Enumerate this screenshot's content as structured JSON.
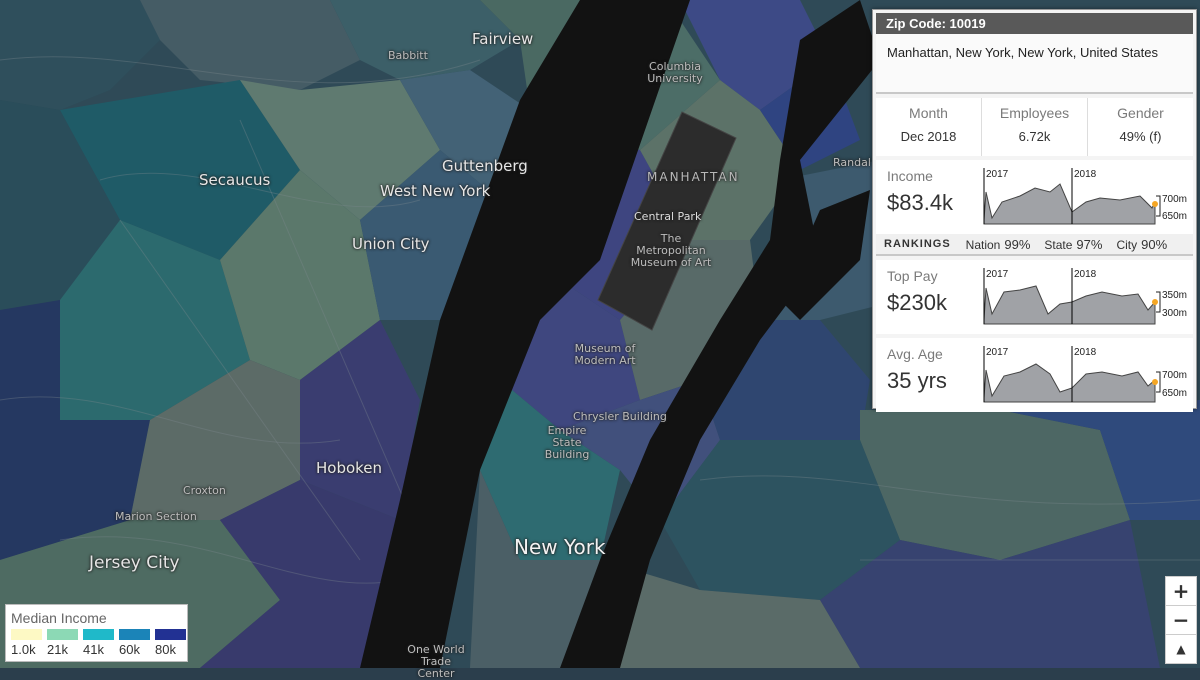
{
  "map": {
    "place_labels": [
      {
        "text": "Fairview"
      },
      {
        "text": "Secaucus"
      },
      {
        "text": "Guttenberg"
      },
      {
        "text": "West New York"
      },
      {
        "text": "Union City"
      },
      {
        "text": "Hoboken"
      },
      {
        "text": "Jersey City"
      },
      {
        "text": "New York"
      },
      {
        "text": "MANHATTAN"
      },
      {
        "text": "Randal Wards I"
      },
      {
        "text": "Babbitt"
      },
      {
        "text": "Columbia University"
      },
      {
        "text": "Central Park"
      },
      {
        "text": "The Metropolitan Museum of Art"
      },
      {
        "text": "Museum of Modern Art"
      },
      {
        "text": "Chrysler Building"
      },
      {
        "text": "Empire State Building"
      },
      {
        "text": "Croxton"
      },
      {
        "text": "Marion Section"
      },
      {
        "text": "One World Trade Center"
      }
    ]
  },
  "panel": {
    "zip_label": "Zip Code: 10019",
    "location": "Manhattan, New York, New York, United States",
    "stats": [
      {
        "label": "Month",
        "value": "Dec 2018"
      },
      {
        "label": "Employees",
        "value": "6.72k"
      },
      {
        "label": "Gender",
        "value": "49% (f)"
      }
    ],
    "income": {
      "label": "Income",
      "value": "$83.4k",
      "year1": "2017",
      "year2": "2018",
      "tick_hi": "700m",
      "tick_lo": "650m"
    },
    "rankings": {
      "title": "RANKINGS",
      "nation_label": "Nation",
      "nation": "99%",
      "state_label": "State",
      "state": "97%",
      "city_label": "City",
      "city": "90%"
    },
    "top_pay": {
      "label": "Top Pay",
      "value": "$230k",
      "year1": "2017",
      "year2": "2018",
      "tick_hi": "350m",
      "tick_lo": "300m"
    },
    "avg_age": {
      "label": "Avg. Age",
      "value": "35 yrs",
      "year1": "2017",
      "year2": "2018",
      "tick_hi": "700m",
      "tick_lo": "650m"
    }
  },
  "legend": {
    "title": "Median Income",
    "items": [
      {
        "label": "1.0k",
        "color": "#fdf9c4"
      },
      {
        "label": "21k",
        "color": "#8cd9b5"
      },
      {
        "label": "41k",
        "color": "#1fb9c9"
      },
      {
        "label": "60k",
        "color": "#1b84b8"
      },
      {
        "label": "80k",
        "color": "#223193"
      }
    ]
  },
  "zoom": {
    "in": "+",
    "out": "−",
    "north": "▲"
  },
  "colors": {
    "water_river": "#111111",
    "land_dark": "#2b2f55",
    "land_teal": "#2d5a66",
    "land_sage": "#5f7a72",
    "panel_header": "#595959"
  }
}
